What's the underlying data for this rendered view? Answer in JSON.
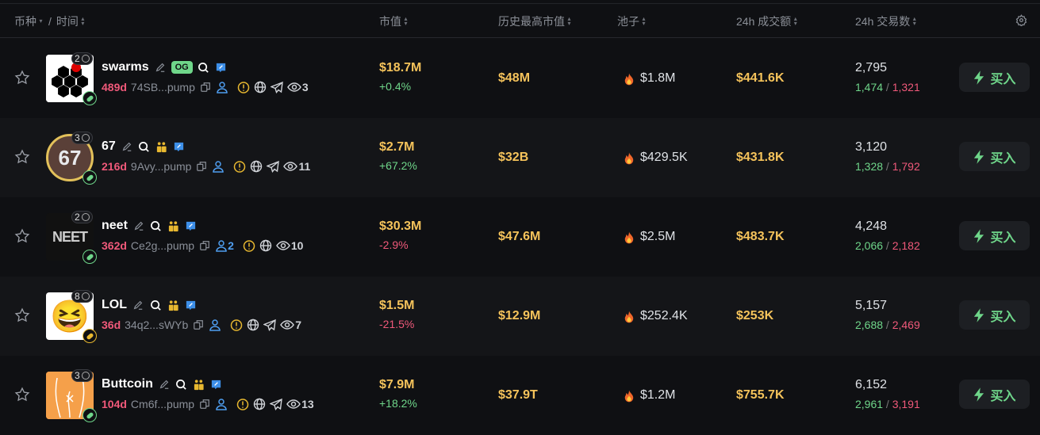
{
  "header": {
    "coin": "币种",
    "sep": "/",
    "time": "时间",
    "mcap": "市值",
    "ath": "历史最高市值",
    "pool": "池子",
    "volume": "24h 成交额",
    "txns": "24h 交易数"
  },
  "colors": {
    "accent_yellow": "#f5c35b",
    "up": "#6fd68a",
    "down": "#f0597a",
    "age": "#f0597a"
  },
  "buy_label": "买入",
  "rows": [
    {
      "name": "swarms",
      "og": "OG",
      "holders": "2",
      "age": "489d",
      "address": "74SB...pump",
      "dev_count": "",
      "views": "3",
      "telegram": true,
      "mcap": "$18.7M",
      "change": "+0.4%",
      "dir": "pos",
      "ath": "$48M",
      "pool": "$1.8M",
      "volume": "$441.6K",
      "txns": "2,795",
      "buys": "1,474",
      "sells": "1,321",
      "pill": "green",
      "avatar_bg": "#ffffff",
      "avatar_text": "",
      "community": false
    },
    {
      "name": "67",
      "og": "",
      "holders": "3",
      "age": "216d",
      "address": "9Avy...pump",
      "dev_count": "",
      "views": "11",
      "telegram": true,
      "mcap": "$2.7M",
      "change": "+67.2%",
      "dir": "pos",
      "ath": "$32B",
      "pool": "$429.5K",
      "volume": "$431.8K",
      "txns": "3,120",
      "buys": "1,328",
      "sells": "1,792",
      "pill": "green",
      "avatar_bg": "#5a4038",
      "avatar_text": "67",
      "community": true
    },
    {
      "name": "neet",
      "og": "",
      "holders": "2",
      "age": "362d",
      "address": "Ce2g...pump",
      "dev_count": "2",
      "views": "10",
      "telegram": false,
      "mcap": "$30.3M",
      "change": "-2.9%",
      "dir": "neg",
      "ath": "$47.6M",
      "pool": "$2.5M",
      "volume": "$483.7K",
      "txns": "4,248",
      "buys": "2,066",
      "sells": "2,182",
      "pill": "green",
      "avatar_bg": "#111111",
      "avatar_text": "NEET",
      "community": true
    },
    {
      "name": "LOL",
      "og": "",
      "holders": "8",
      "age": "36d",
      "address": "34q2...sWYb",
      "dev_count": "",
      "views": "7",
      "telegram": true,
      "mcap": "$1.5M",
      "change": "-21.5%",
      "dir": "neg",
      "ath": "$12.9M",
      "pool": "$252.4K",
      "volume": "$253K",
      "txns": "5,157",
      "buys": "2,688",
      "sells": "2,469",
      "pill": "gold",
      "avatar_bg": "#ffffff",
      "avatar_text": "😆",
      "community": true
    },
    {
      "name": "Buttcoin",
      "og": "",
      "holders": "3",
      "age": "104d",
      "address": "Cm6f...pump",
      "dev_count": "",
      "views": "13",
      "telegram": true,
      "mcap": "$7.9M",
      "change": "+18.2%",
      "dir": "pos",
      "ath": "$37.9T",
      "pool": "$1.2M",
      "volume": "$755.7K",
      "txns": "6,152",
      "buys": "2,961",
      "sells": "3,191",
      "pill": "green",
      "avatar_bg": "#f5a04a",
      "avatar_text": "",
      "community": true
    }
  ]
}
